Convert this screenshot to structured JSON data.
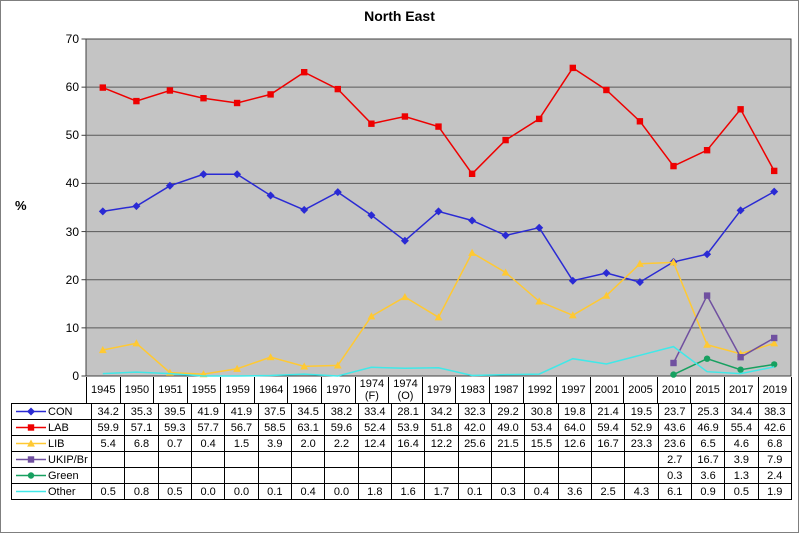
{
  "title": "North East",
  "ylabel": "%",
  "chart_data": {
    "type": "line",
    "title": "North East",
    "ylabel": "%",
    "ylim": [
      0,
      70
    ],
    "ytick_step": 10,
    "grid": "horizontal",
    "plot_bg_color": "#C4C4C4",
    "gridline_color": "#595959",
    "axis_border_color": "#404040",
    "legend_position": "data-table-left",
    "categories": [
      "1945",
      "1950",
      "1951",
      "1955",
      "1959",
      "1964",
      "1966",
      "1970",
      "1974 (F)",
      "1974 (O)",
      "1979",
      "1983",
      "1987",
      "1992",
      "1997",
      "2001",
      "2005",
      "2010",
      "2015",
      "2017",
      "2019"
    ],
    "series": [
      {
        "name": "CON",
        "color": "#2A2AD4",
        "marker": "diamond",
        "values": [
          34.2,
          35.3,
          39.5,
          41.9,
          41.9,
          37.5,
          34.5,
          38.2,
          33.4,
          28.1,
          34.2,
          32.3,
          29.2,
          30.8,
          19.8,
          21.4,
          19.5,
          23.7,
          25.3,
          34.4,
          38.3
        ]
      },
      {
        "name": "LAB",
        "color": "#EE0000",
        "marker": "square",
        "values": [
          59.9,
          57.1,
          59.3,
          57.7,
          56.7,
          58.5,
          63.1,
          59.6,
          52.4,
          53.9,
          51.8,
          42.0,
          49.0,
          53.4,
          64.0,
          59.4,
          52.9,
          43.6,
          46.9,
          55.4,
          42.6
        ]
      },
      {
        "name": "LIB",
        "color": "#FFC933",
        "marker": "triangle",
        "values": [
          5.4,
          6.8,
          0.7,
          0.4,
          1.5,
          3.9,
          2.0,
          2.2,
          12.4,
          16.4,
          12.2,
          25.6,
          21.5,
          15.5,
          12.6,
          16.7,
          23.3,
          23.6,
          6.5,
          4.6,
          6.8
        ]
      },
      {
        "name": "UKIP/Br",
        "color": "#7050A0",
        "marker": "square",
        "values": [
          null,
          null,
          null,
          null,
          null,
          null,
          null,
          null,
          null,
          null,
          null,
          null,
          null,
          null,
          null,
          null,
          null,
          2.7,
          16.7,
          3.9,
          7.9
        ]
      },
      {
        "name": "Green",
        "color": "#17A060",
        "marker": "circle",
        "values": [
          null,
          null,
          null,
          null,
          null,
          null,
          null,
          null,
          null,
          null,
          null,
          null,
          null,
          null,
          null,
          null,
          null,
          0.3,
          3.6,
          1.3,
          2.4
        ]
      },
      {
        "name": "Other",
        "color": "#40E8E8",
        "marker": "none",
        "values": [
          0.5,
          0.8,
          0.5,
          0.0,
          0.0,
          0.1,
          0.4,
          0.0,
          1.8,
          1.6,
          1.7,
          0.1,
          0.3,
          0.4,
          3.6,
          2.5,
          4.3,
          6.1,
          0.9,
          0.5,
          1.9
        ]
      }
    ]
  }
}
